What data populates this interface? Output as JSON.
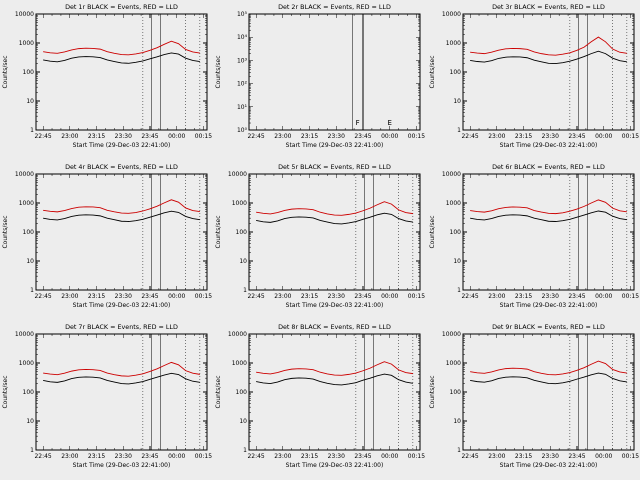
{
  "page": {
    "background": "#ededed"
  },
  "colors": {
    "axis": "#000000",
    "events": "#000000",
    "lld": "#cc0000"
  },
  "chart_common": {
    "xlabel": "Start Time (29-Dec-03 22:41:00)",
    "ylabel": "Counts/sec",
    "x_range_minutes": [
      0,
      96
    ],
    "x_ticks": [
      {
        "m": 4,
        "label": "22:45"
      },
      {
        "m": 19,
        "label": "23:00"
      },
      {
        "m": 34,
        "label": "23:15"
      },
      {
        "m": 49,
        "label": "23:30"
      },
      {
        "m": 64,
        "label": "23:45"
      },
      {
        "m": 79,
        "label": "00:00"
      },
      {
        "m": 94,
        "label": "00:15"
      }
    ],
    "x_minor_minutes": [
      9,
      14,
      24,
      29,
      39,
      44,
      54,
      59,
      69,
      74,
      84,
      89
    ],
    "x_minutes": [
      4,
      8,
      12,
      16,
      20,
      24,
      28,
      32,
      36,
      40,
      44,
      48,
      52,
      56,
      60,
      64,
      68,
      72,
      76,
      80,
      84,
      88,
      92
    ]
  },
  "chart_data": [
    {
      "type": "line",
      "title": "Det 1r BLACK = Events, RED = LLD",
      "ylim": [
        1,
        10000
      ],
      "y_ticks": [
        {
          "v": 1,
          "label": "1"
        },
        {
          "v": 10,
          "label": "10"
        },
        {
          "v": 100,
          "label": "100"
        },
        {
          "v": 1000,
          "label": "1000"
        },
        {
          "v": 10000,
          "label": "10000"
        }
      ],
      "vlines_solid_minutes": [
        65,
        70
      ],
      "vlines_dotted_minutes": [
        60,
        84,
        92
      ],
      "annotations": [],
      "series": [
        {
          "name": "Events",
          "color": "#000000",
          "values": [
            260,
            235,
            225,
            250,
            300,
            330,
            340,
            335,
            315,
            260,
            230,
            205,
            200,
            215,
            240,
            285,
            335,
            400,
            455,
            415,
            300,
            250,
            230
          ]
        },
        {
          "name": "LLD",
          "color": "#cc0000",
          "values": [
            500,
            460,
            440,
            490,
            575,
            640,
            660,
            650,
            615,
            500,
            440,
            400,
            390,
            420,
            470,
            560,
            690,
            900,
            1150,
            950,
            600,
            490,
            450
          ]
        }
      ]
    },
    {
      "type": "line",
      "title": "Det 2r BLACK = Events, RED = LLD",
      "ylim": [
        1,
        100000
      ],
      "y_ticks": [
        {
          "v": 1,
          "label": "10⁰"
        },
        {
          "v": 10,
          "label": "10¹"
        },
        {
          "v": 100,
          "label": "10²"
        },
        {
          "v": 1000,
          "label": "10³"
        },
        {
          "v": 10000,
          "label": "10⁴"
        },
        {
          "v": 100000,
          "label": "10⁵"
        }
      ],
      "vlines_solid_minutes": [
        58,
        64
      ],
      "vlines_dotted_minutes": [],
      "annotations": [
        {
          "m": 61,
          "label": "F"
        },
        {
          "m": 79,
          "label": "E"
        }
      ],
      "series": []
    },
    {
      "type": "line",
      "title": "Det 3r BLACK = Events, RED = LLD",
      "ylim": [
        1,
        10000
      ],
      "y_ticks": [
        {
          "v": 1,
          "label": "1"
        },
        {
          "v": 10,
          "label": "10"
        },
        {
          "v": 100,
          "label": "100"
        },
        {
          "v": 1000,
          "label": "1000"
        },
        {
          "v": 10000,
          "label": "10000"
        }
      ],
      "vlines_solid_minutes": [
        65,
        70
      ],
      "vlines_dotted_minutes": [
        60,
        84,
        92
      ],
      "annotations": [],
      "series": [
        {
          "name": "Events",
          "color": "#000000",
          "values": [
            250,
            230,
            220,
            245,
            295,
            325,
            335,
            330,
            310,
            255,
            225,
            200,
            195,
            210,
            235,
            280,
            340,
            430,
            520,
            430,
            300,
            245,
            225
          ]
        },
        {
          "name": "LLD",
          "color": "#cc0000",
          "values": [
            480,
            450,
            430,
            480,
            565,
            630,
            650,
            640,
            605,
            490,
            430,
            390,
            380,
            410,
            460,
            560,
            720,
            1100,
            1600,
            1100,
            620,
            480,
            440
          ]
        }
      ]
    },
    {
      "type": "line",
      "title": "Det 4r BLACK = Events, RED = LLD",
      "ylim": [
        1,
        10000
      ],
      "y_ticks": [
        {
          "v": 1,
          "label": "1"
        },
        {
          "v": 10,
          "label": "10"
        },
        {
          "v": 100,
          "label": "100"
        },
        {
          "v": 1000,
          "label": "1000"
        },
        {
          "v": 10000,
          "label": "10000"
        }
      ],
      "vlines_solid_minutes": [
        65,
        70
      ],
      "vlines_dotted_minutes": [
        60,
        84,
        92
      ],
      "annotations": [],
      "series": [
        {
          "name": "Events",
          "color": "#000000",
          "values": [
            300,
            270,
            260,
            290,
            345,
            380,
            390,
            385,
            360,
            300,
            265,
            235,
            230,
            245,
            275,
            325,
            385,
            460,
            520,
            475,
            345,
            290,
            265
          ]
        },
        {
          "name": "LLD",
          "color": "#cc0000",
          "values": [
            560,
            515,
            495,
            550,
            645,
            715,
            740,
            730,
            690,
            560,
            495,
            450,
            440,
            470,
            530,
            630,
            775,
            1010,
            1290,
            1070,
            675,
            550,
            505
          ]
        }
      ]
    },
    {
      "type": "line",
      "title": "Det 5r BLACK = Events, RED = LLD",
      "ylim": [
        1,
        10000
      ],
      "y_ticks": [
        {
          "v": 1,
          "label": "1"
        },
        {
          "v": 10,
          "label": "10"
        },
        {
          "v": 100,
          "label": "100"
        },
        {
          "v": 1000,
          "label": "1000"
        },
        {
          "v": 10000,
          "label": "10000"
        }
      ],
      "vlines_solid_minutes": [
        65,
        70
      ],
      "vlines_dotted_minutes": [
        60,
        84,
        92
      ],
      "annotations": [],
      "series": [
        {
          "name": "Events",
          "color": "#000000",
          "values": [
            250,
            225,
            215,
            240,
            290,
            320,
            330,
            325,
            305,
            250,
            220,
            195,
            190,
            205,
            230,
            275,
            325,
            390,
            445,
            405,
            290,
            240,
            220
          ]
        },
        {
          "name": "LLD",
          "color": "#cc0000",
          "values": [
            480,
            440,
            420,
            470,
            555,
            615,
            635,
            625,
            590,
            480,
            420,
            385,
            375,
            405,
            450,
            540,
            665,
            870,
            1110,
            915,
            580,
            470,
            430
          ]
        }
      ]
    },
    {
      "type": "line",
      "title": "Det 6r BLACK = Events, RED = LLD",
      "ylim": [
        1,
        10000
      ],
      "y_ticks": [
        {
          "v": 1,
          "label": "1"
        },
        {
          "v": 10,
          "label": "10"
        },
        {
          "v": 100,
          "label": "100"
        },
        {
          "v": 1000,
          "label": "1000"
        },
        {
          "v": 10000,
          "label": "10000"
        }
      ],
      "vlines_solid_minutes": [
        65,
        70
      ],
      "vlines_dotted_minutes": [
        60,
        84,
        92
      ],
      "annotations": [],
      "series": [
        {
          "name": "Events",
          "color": "#000000",
          "values": [
            300,
            270,
            260,
            290,
            345,
            380,
            390,
            385,
            360,
            300,
            265,
            235,
            230,
            245,
            275,
            325,
            385,
            460,
            530,
            480,
            350,
            290,
            265
          ]
        },
        {
          "name": "LLD",
          "color": "#cc0000",
          "values": [
            550,
            505,
            485,
            540,
            635,
            705,
            730,
            720,
            680,
            550,
            485,
            440,
            430,
            460,
            520,
            620,
            765,
            1000,
            1280,
            1060,
            665,
            540,
            495
          ]
        }
      ]
    },
    {
      "type": "line",
      "title": "Det 7r BLACK = Events, RED = LLD",
      "ylim": [
        1,
        10000
      ],
      "y_ticks": [
        {
          "v": 1,
          "label": "1"
        },
        {
          "v": 10,
          "label": "10"
        },
        {
          "v": 100,
          "label": "100"
        },
        {
          "v": 1000,
          "label": "1000"
        },
        {
          "v": 10000,
          "label": "10000"
        }
      ],
      "vlines_solid_minutes": [
        65,
        70
      ],
      "vlines_dotted_minutes": [
        60,
        84,
        92
      ],
      "annotations": [],
      "series": [
        {
          "name": "Events",
          "color": "#000000",
          "values": [
            250,
            225,
            215,
            240,
            290,
            320,
            330,
            325,
            305,
            250,
            220,
            195,
            190,
            205,
            230,
            275,
            325,
            385,
            440,
            400,
            285,
            235,
            215
          ]
        },
        {
          "name": "LLD",
          "color": "#cc0000",
          "values": [
            450,
            415,
            395,
            445,
            525,
            580,
            600,
            590,
            555,
            450,
            395,
            360,
            350,
            380,
            425,
            510,
            630,
            820,
            1050,
            865,
            545,
            445,
            405
          ]
        }
      ]
    },
    {
      "type": "line",
      "title": "Det 8r BLACK = Events, RED = LLD",
      "ylim": [
        1,
        10000
      ],
      "y_ticks": [
        {
          "v": 1,
          "label": "1"
        },
        {
          "v": 10,
          "label": "10"
        },
        {
          "v": 100,
          "label": "100"
        },
        {
          "v": 1000,
          "label": "1000"
        },
        {
          "v": 10000,
          "label": "10000"
        }
      ],
      "vlines_solid_minutes": [
        65,
        70
      ],
      "vlines_dotted_minutes": [
        60,
        84,
        92
      ],
      "annotations": [],
      "series": [
        {
          "name": "Events",
          "color": "#000000",
          "values": [
            230,
            205,
            195,
            220,
            265,
            295,
            305,
            300,
            280,
            230,
            200,
            180,
            175,
            190,
            210,
            255,
            300,
            360,
            415,
            375,
            265,
            220,
            200
          ]
        },
        {
          "name": "LLD",
          "color": "#cc0000",
          "values": [
            480,
            440,
            420,
            470,
            555,
            615,
            635,
            625,
            590,
            480,
            420,
            385,
            375,
            405,
            450,
            540,
            665,
            870,
            1110,
            915,
            580,
            470,
            430
          ]
        }
      ]
    },
    {
      "type": "line",
      "title": "Det 9r BLACK = Events, RED = LLD",
      "ylim": [
        1,
        10000
      ],
      "y_ticks": [
        {
          "v": 1,
          "label": "1"
        },
        {
          "v": 10,
          "label": "10"
        },
        {
          "v": 100,
          "label": "100"
        },
        {
          "v": 1000,
          "label": "1000"
        },
        {
          "v": 10000,
          "label": "10000"
        }
      ],
      "vlines_solid_minutes": [
        65,
        70
      ],
      "vlines_dotted_minutes": [
        60,
        84,
        92
      ],
      "annotations": [],
      "series": [
        {
          "name": "Events",
          "color": "#000000",
          "values": [
            250,
            228,
            218,
            243,
            293,
            323,
            333,
            328,
            308,
            253,
            223,
            198,
            193,
            208,
            233,
            278,
            328,
            393,
            450,
            408,
            293,
            243,
            223
          ]
        },
        {
          "name": "LLD",
          "color": "#cc0000",
          "values": [
            500,
            460,
            440,
            490,
            575,
            640,
            660,
            650,
            615,
            500,
            440,
            400,
            390,
            420,
            470,
            560,
            690,
            905,
            1160,
            955,
            600,
            490,
            450
          ]
        }
      ]
    }
  ]
}
